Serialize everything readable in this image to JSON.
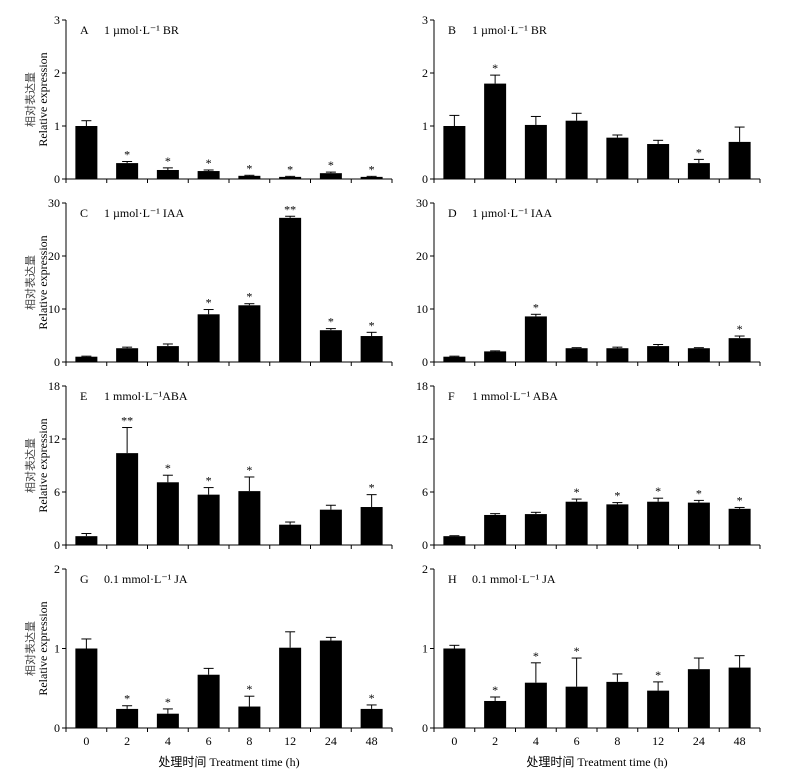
{
  "x_axis_label": "处理时间 Treatment time (h)",
  "chart_data": [
    {
      "type": "bar",
      "panel_letter": "A",
      "title": "1 µmol·L⁻¹ BR",
      "ylabel_cn": "相对表达量",
      "ylabel": "Relative expression",
      "xlabel": "处理时间 Treatment time (h)",
      "categories": [
        "0",
        "2",
        "4",
        "6",
        "8",
        "12",
        "24",
        "48"
      ],
      "values": [
        1.0,
        0.3,
        0.17,
        0.15,
        0.06,
        0.04,
        0.11,
        0.04
      ],
      "errors": [
        0.1,
        0.03,
        0.04,
        0.02,
        0.01,
        0.01,
        0.02,
        0.01
      ],
      "significance": [
        "",
        "*",
        "*",
        "*",
        "*",
        "*",
        "*",
        "*"
      ],
      "ylim": [
        0,
        3
      ],
      "yticks": [
        "0",
        "1",
        "2",
        "3"
      ]
    },
    {
      "type": "bar",
      "panel_letter": "B",
      "title": "1 µmol·L⁻¹ BR",
      "ylabel_cn": "",
      "ylabel": "",
      "xlabel": "处理时间 Treatment time (h)",
      "categories": [
        "0",
        "2",
        "4",
        "6",
        "8",
        "12",
        "24",
        "48"
      ],
      "values": [
        1.0,
        1.8,
        1.02,
        1.1,
        0.78,
        0.66,
        0.3,
        0.7
      ],
      "errors": [
        0.2,
        0.16,
        0.16,
        0.14,
        0.05,
        0.07,
        0.07,
        0.28
      ],
      "significance": [
        "",
        "*",
        "",
        "",
        "",
        "",
        "*",
        ""
      ],
      "ylim": [
        0,
        3
      ],
      "yticks": [
        "0",
        "1",
        "2",
        "3"
      ]
    },
    {
      "type": "bar",
      "panel_letter": "C",
      "title": "1 µmol·L⁻¹ IAA",
      "ylabel_cn": "相对表达量",
      "ylabel": "Relative expression",
      "xlabel": "处理时间 Treatment time (h)",
      "categories": [
        "0",
        "2",
        "4",
        "6",
        "8",
        "12",
        "24",
        "48"
      ],
      "values": [
        1.0,
        2.6,
        3.0,
        9.0,
        10.7,
        27.2,
        6.0,
        4.9
      ],
      "errors": [
        0.1,
        0.2,
        0.4,
        0.9,
        0.3,
        0.3,
        0.3,
        0.7
      ],
      "significance": [
        "",
        "",
        "",
        "*",
        "*",
        "**",
        "*",
        "*"
      ],
      "ylim": [
        0,
        30
      ],
      "yticks": [
        "0",
        "10",
        "20",
        "30"
      ]
    },
    {
      "type": "bar",
      "panel_letter": "D",
      "title": "1 µmol·L⁻¹ IAA",
      "ylabel_cn": "",
      "ylabel": "",
      "xlabel": "处理时间 Treatment time (h)",
      "categories": [
        "0",
        "2",
        "4",
        "6",
        "8",
        "12",
        "24",
        "48"
      ],
      "values": [
        1.0,
        2.0,
        8.6,
        2.6,
        2.6,
        3.0,
        2.6,
        4.5
      ],
      "errors": [
        0.1,
        0.1,
        0.4,
        0.1,
        0.2,
        0.3,
        0.1,
        0.4
      ],
      "significance": [
        "",
        "",
        "*",
        "",
        "",
        "",
        "",
        "*"
      ],
      "ylim": [
        0,
        30
      ],
      "yticks": [
        "0",
        "10",
        "20",
        "30"
      ]
    },
    {
      "type": "bar",
      "panel_letter": "E",
      "title": "1 mmol·L⁻¹ABA",
      "ylabel_cn": "相对表达量",
      "ylabel": "Relative expression",
      "xlabel": "处理时间 Treatment time (h)",
      "categories": [
        "0",
        "2",
        "4",
        "6",
        "8",
        "12",
        "24",
        "48"
      ],
      "values": [
        1.0,
        10.4,
        7.1,
        5.7,
        6.1,
        2.3,
        4.0,
        4.3
      ],
      "errors": [
        0.3,
        2.9,
        0.8,
        0.8,
        1.6,
        0.3,
        0.5,
        1.4
      ],
      "significance": [
        "",
        "**",
        "*",
        "*",
        "*",
        "",
        "",
        "*"
      ],
      "ylim": [
        0,
        18
      ],
      "yticks": [
        "0",
        "6",
        "12",
        "18"
      ]
    },
    {
      "type": "bar",
      "panel_letter": "F",
      "title": "1 mmol·L⁻¹ ABA",
      "ylabel_cn": "",
      "ylabel": "",
      "xlabel": "处理时间 Treatment time (h)",
      "categories": [
        "0",
        "2",
        "4",
        "6",
        "8",
        "12",
        "24",
        "48"
      ],
      "values": [
        1.0,
        3.4,
        3.5,
        4.9,
        4.6,
        4.9,
        4.8,
        4.1
      ],
      "errors": [
        0.05,
        0.15,
        0.2,
        0.3,
        0.2,
        0.4,
        0.25,
        0.15
      ],
      "significance": [
        "",
        "",
        "",
        "*",
        "*",
        "*",
        "*",
        "*"
      ],
      "ylim": [
        0,
        18
      ],
      "yticks": [
        "0",
        "6",
        "12",
        "18"
      ]
    },
    {
      "type": "bar",
      "panel_letter": "G",
      "title": "0.1 mmol·L⁻¹ JA",
      "ylabel_cn": "相对表达量",
      "ylabel": "Relative expression",
      "xlabel": "处理时间 Treatment time (h)",
      "categories": [
        "0",
        "2",
        "4",
        "6",
        "8",
        "12",
        "24",
        "48"
      ],
      "values": [
        1.0,
        0.24,
        0.18,
        0.67,
        0.27,
        1.01,
        1.1,
        0.24
      ],
      "errors": [
        0.12,
        0.04,
        0.06,
        0.08,
        0.13,
        0.2,
        0.04,
        0.05
      ],
      "significance": [
        "",
        "*",
        "*",
        "",
        "*",
        "",
        "",
        "*"
      ],
      "ylim": [
        0,
        2
      ],
      "yticks": [
        "0",
        "1",
        "2"
      ]
    },
    {
      "type": "bar",
      "panel_letter": "H",
      "title": "0.1 mmol·L⁻¹ JA",
      "ylabel_cn": "",
      "ylabel": "",
      "xlabel": "处理时间 Treatment time (h)",
      "categories": [
        "0",
        "2",
        "4",
        "6",
        "8",
        "12",
        "24",
        "48"
      ],
      "values": [
        1.0,
        0.34,
        0.57,
        0.52,
        0.58,
        0.47,
        0.74,
        0.76
      ],
      "errors": [
        0.04,
        0.05,
        0.25,
        0.36,
        0.1,
        0.11,
        0.14,
        0.15
      ],
      "significance": [
        "",
        "*",
        "*",
        "*",
        "",
        "*",
        "",
        ""
      ],
      "ylim": [
        0,
        2
      ],
      "yticks": [
        "0",
        "1",
        "2"
      ]
    }
  ]
}
